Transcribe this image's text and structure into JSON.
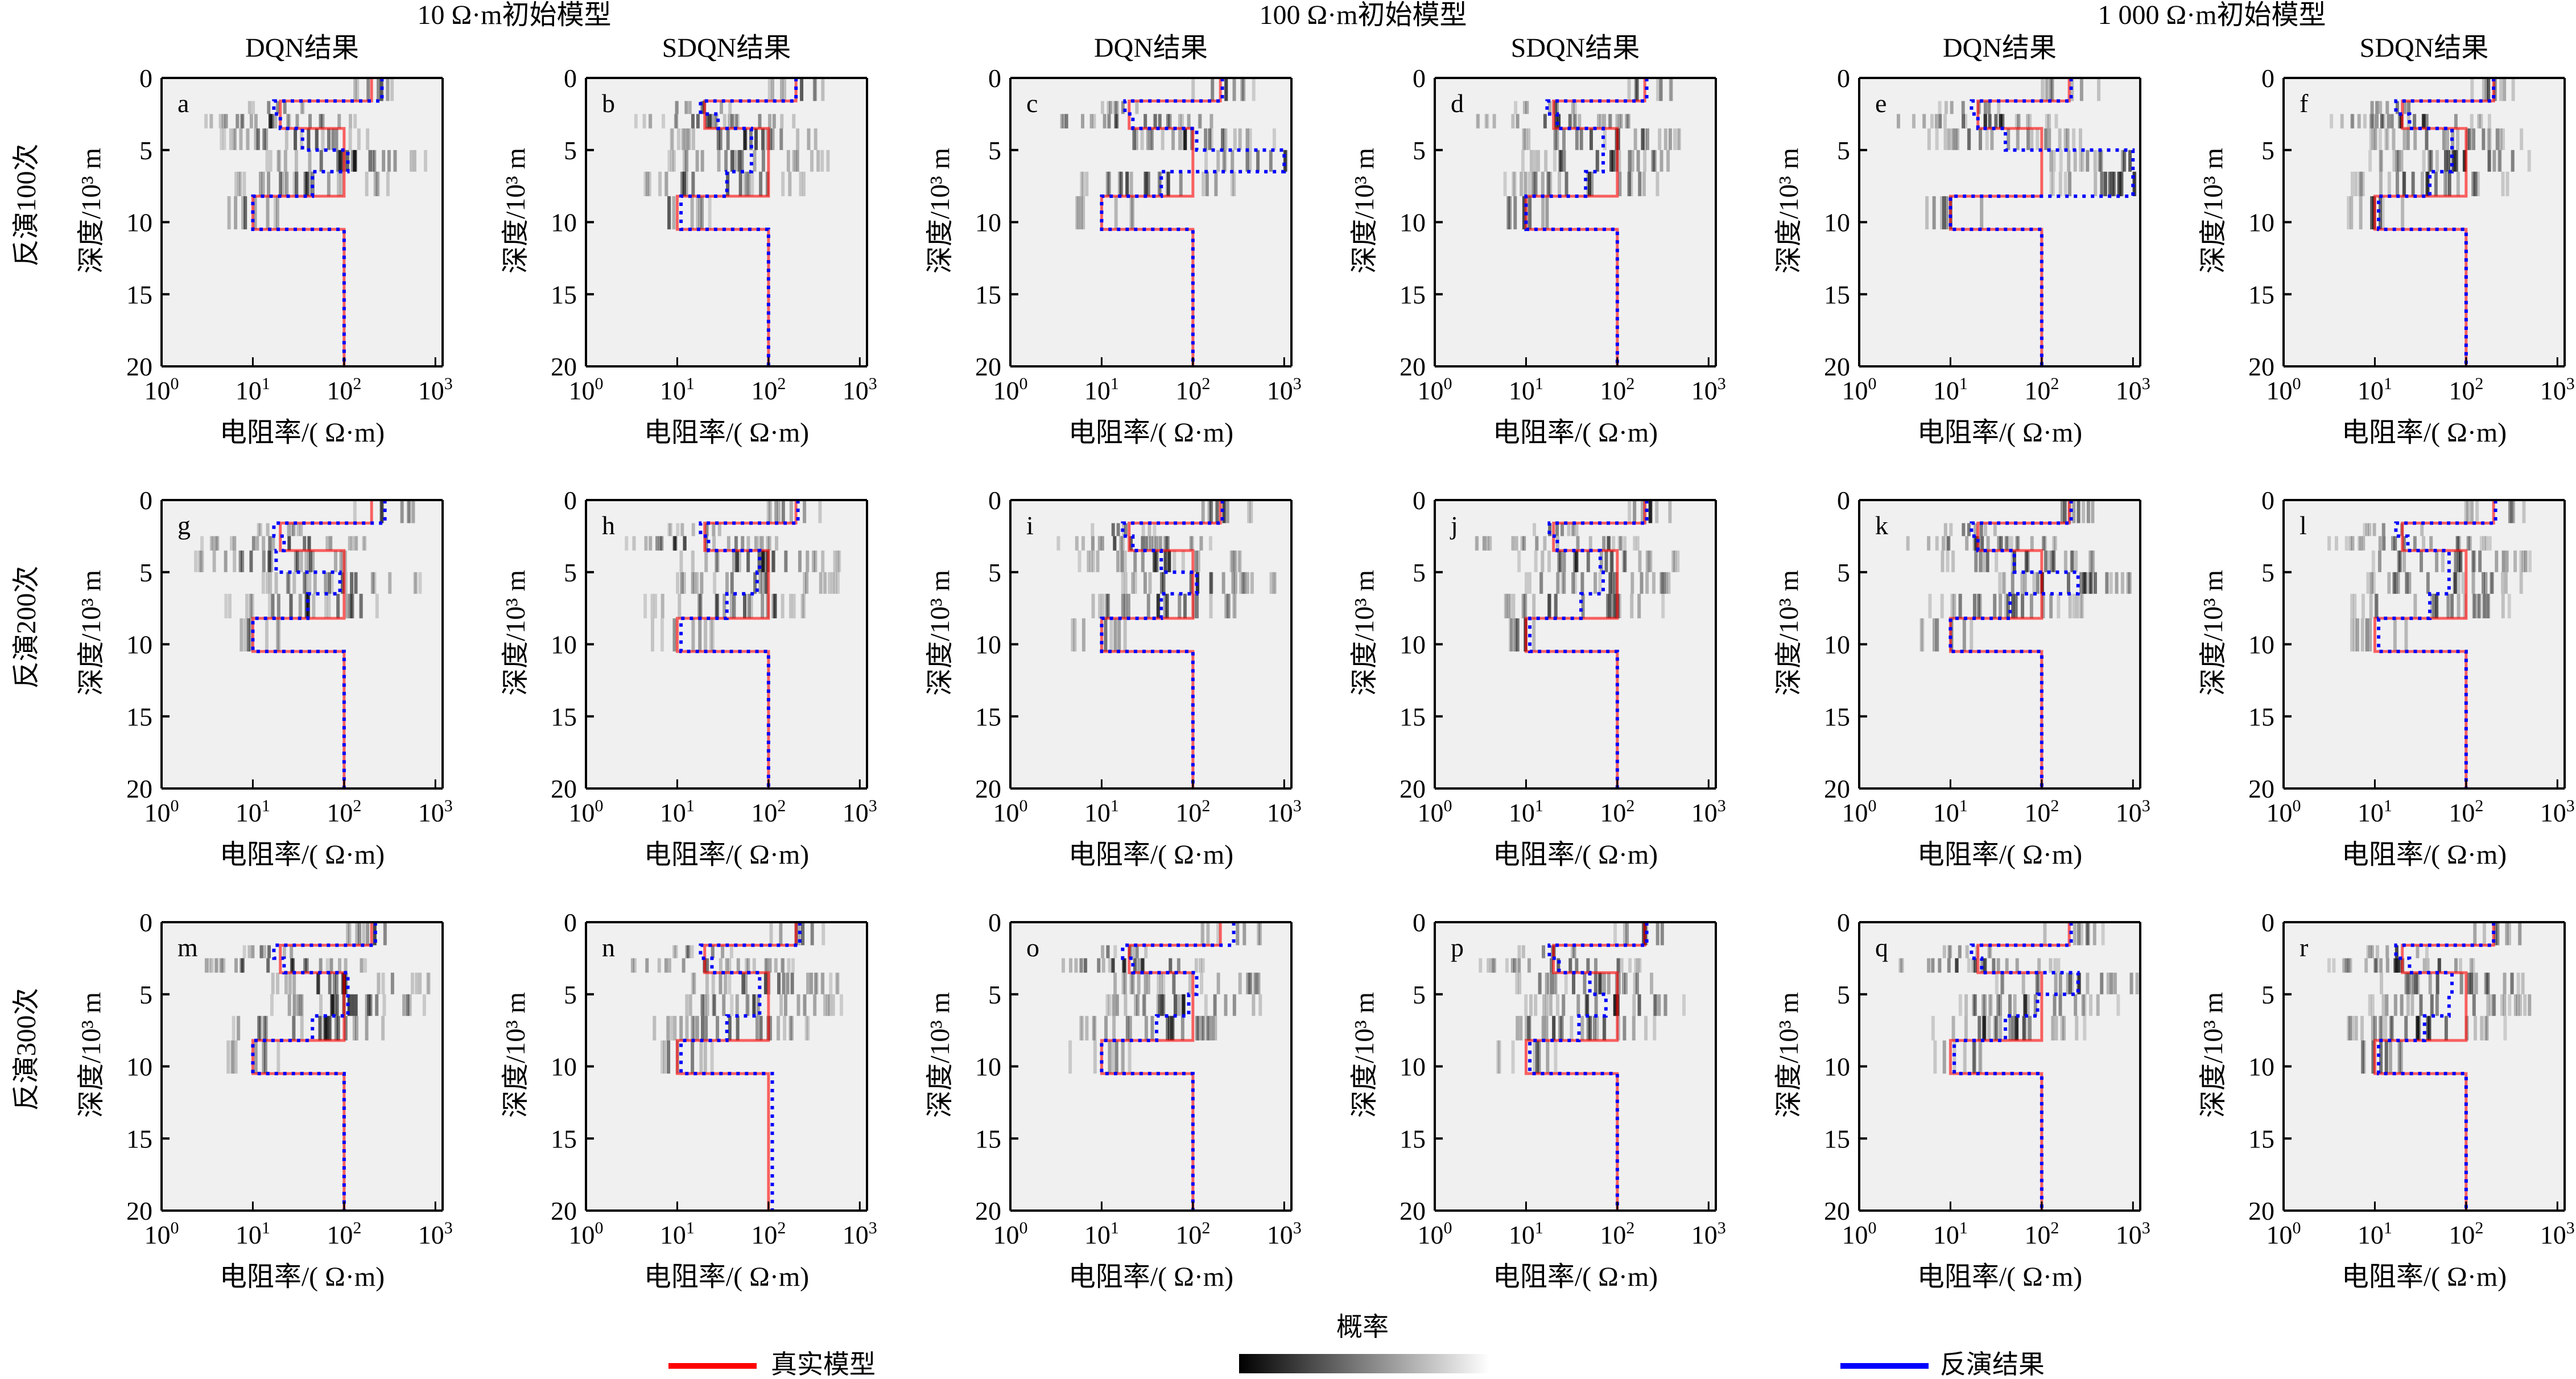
{
  "chart_data": {
    "type": "line",
    "description": "Grid of 18 step-profile plots: resistivity (log x) vs depth (y, inverted) with probability shading",
    "group_titles": [
      "10 Ω·m初始模型",
      "100 Ω·m初始模型",
      "1 000 Ω·m初始模型"
    ],
    "column_titles": [
      "DQN结果",
      "SDQN结果",
      "DQN结果",
      "SDQN结果",
      "DQN结果",
      "SDQN结果"
    ],
    "row_labels": [
      "反演100次",
      "反演200次",
      "反演300次"
    ],
    "xlabel": "电阻率/( Ω·m)",
    "ylabel": "深度/10³ m",
    "xscale": "log",
    "xlim": [
      1,
      1200
    ],
    "ylim": [
      0,
      20
    ],
    "yticks": [
      0,
      5,
      10,
      15,
      20
    ],
    "xticks": [
      {
        "base": "10",
        "exp": "0",
        "value": 1
      },
      {
        "base": "10",
        "exp": "1",
        "value": 10
      },
      {
        "base": "10",
        "exp": "2",
        "value": 100
      },
      {
        "base": "10",
        "exp": "3",
        "value": 1000
      }
    ],
    "layer_depths": [
      0,
      1.6,
      2.5,
      3.5,
      5.0,
      6.5,
      8.2,
      10.5,
      20
    ],
    "true_model": {
      "name": "真实模型",
      "color": "#ff0000",
      "values": [
        200,
        20,
        20,
        100,
        100,
        100,
        10,
        100
      ]
    },
    "panels": [
      {
        "label": "a",
        "inversion": [
          260,
          17,
          20,
          35,
          110,
          45,
          10,
          100
        ]
      },
      {
        "label": "b",
        "inversion": [
          200,
          18,
          28,
          65,
          65,
          35,
          11,
          100
        ]
      },
      {
        "label": "c",
        "inversion": [
          210,
          18,
          22,
          110,
          1000,
          45,
          10,
          100
        ]
      },
      {
        "label": "d",
        "inversion": [
          210,
          17,
          22,
          70,
          70,
          45,
          10,
          100
        ]
      },
      {
        "label": "e",
        "inversion": [
          210,
          17,
          20,
          40,
          1000,
          1000,
          10,
          100
        ]
      },
      {
        "label": "f",
        "inversion": [
          200,
          17,
          24,
          70,
          70,
          40,
          11,
          100
        ]
      },
      {
        "label": "g",
        "inversion": [
          280,
          17,
          22,
          18,
          90,
          40,
          10,
          100
        ]
      },
      {
        "label": "h",
        "inversion": [
          210,
          18,
          22,
          80,
          75,
          35,
          11,
          100
        ]
      },
      {
        "label": "i",
        "inversion": [
          210,
          17,
          22,
          45,
          110,
          45,
          10,
          100
        ]
      },
      {
        "label": "j",
        "inversion": [
          210,
          18,
          22,
          65,
          70,
          40,
          11,
          100
        ]
      },
      {
        "label": "k",
        "inversion": [
          210,
          17,
          20,
          50,
          250,
          45,
          10,
          100
        ]
      },
      {
        "label": "l",
        "inversion": [
          210,
          17,
          23,
          65,
          65,
          40,
          11,
          100
        ]
      },
      {
        "label": "m",
        "inversion": [
          220,
          17,
          22,
          110,
          110,
          45,
          10,
          100
        ]
      },
      {
        "label": "n",
        "inversion": [
          220,
          18,
          24,
          80,
          80,
          35,
          11,
          110
        ]
      },
      {
        "label": "o",
        "inversion": [
          280,
          17,
          22,
          110,
          90,
          40,
          10,
          100
        ]
      },
      {
        "label": "p",
        "inversion": [
          210,
          18,
          23,
          50,
          75,
          38,
          11,
          100
        ]
      },
      {
        "label": "q",
        "inversion": [
          210,
          17,
          22,
          250,
          90,
          40,
          11,
          100
        ]
      },
      {
        "label": "r",
        "inversion": [
          200,
          17,
          24,
          70,
          65,
          35,
          11,
          100
        ]
      }
    ],
    "legend": {
      "true_model": "真实模型",
      "probability": "概率",
      "inversion": "反演结果",
      "inversion_color": "#0000ff",
      "probability_gradient": [
        "#000000",
        "#ffffff"
      ]
    },
    "colors": {
      "plot_bg": "#f0f0f0",
      "true_model": "#ff0000",
      "inversion": "#0000ff"
    }
  }
}
